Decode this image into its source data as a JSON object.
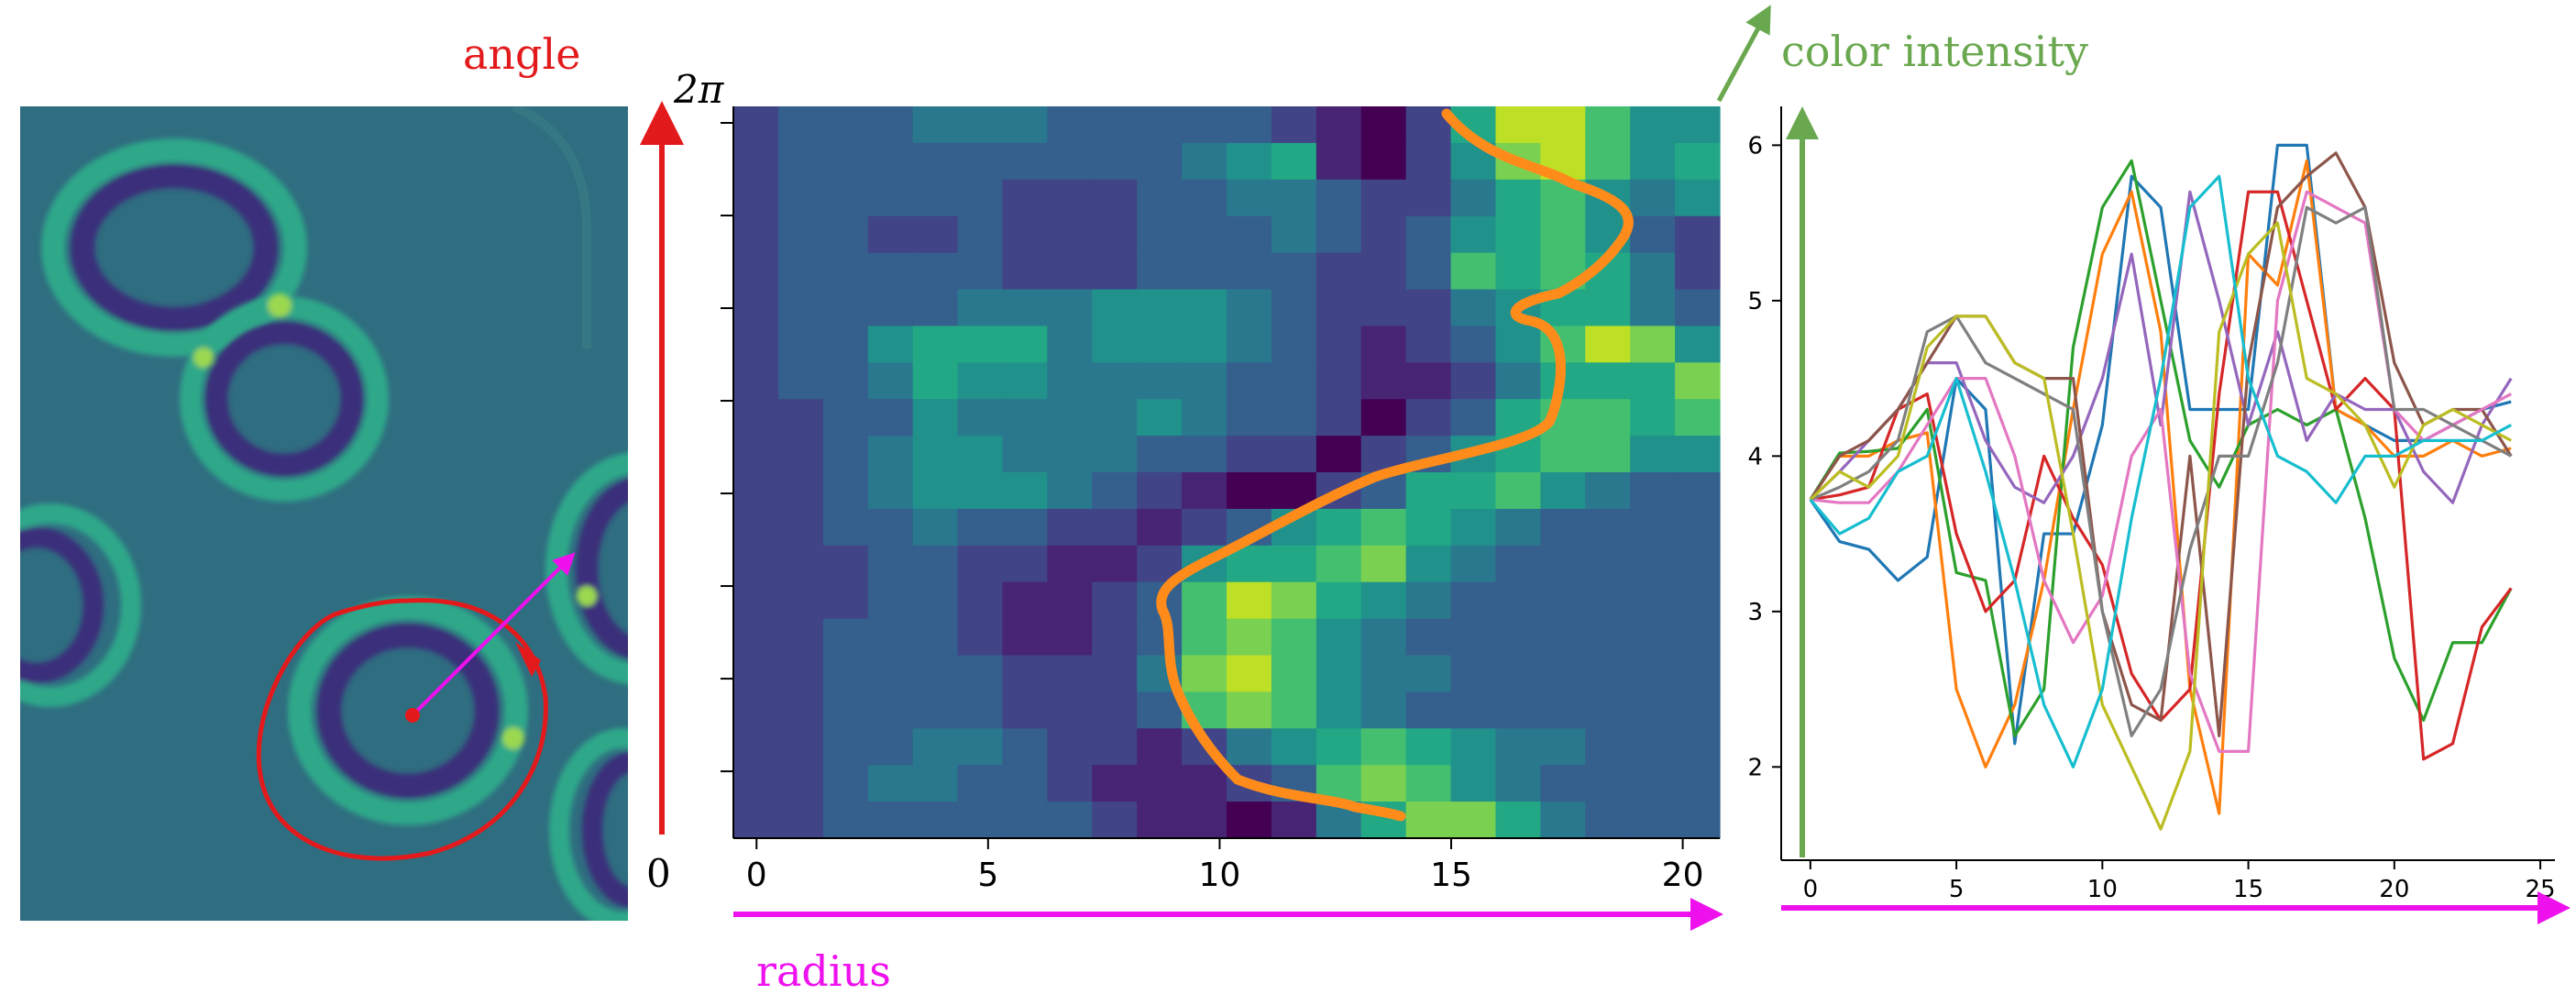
{
  "labels": {
    "angle": "angle",
    "two_pi": "2π",
    "zero": "0",
    "radius": "radius",
    "color_intensity": "color intensity"
  },
  "colors": {
    "angle_arrow": "#e31a1c",
    "radius_arrow": "#ee11ee",
    "intensity_arrow": "#6aa84f",
    "path": "#ff8c1a",
    "circle": "#e31a1c"
  },
  "heatmap": {
    "x_ticks": [
      "0",
      "5",
      "10",
      "15",
      "20"
    ],
    "x_range": [
      -0.5,
      20.8
    ],
    "grid": [
      [
        2,
        3,
        3,
        3,
        4,
        4,
        4,
        3,
        3,
        3,
        3,
        3,
        2,
        1,
        0,
        2,
        6,
        9,
        9,
        7,
        5,
        5
      ],
      [
        2,
        3,
        3,
        3,
        3,
        3,
        3,
        3,
        3,
        3,
        4,
        5,
        6,
        1,
        0,
        2,
        5,
        8,
        9,
        7,
        5,
        6
      ],
      [
        2,
        3,
        3,
        3,
        3,
        3,
        2,
        2,
        2,
        3,
        3,
        4,
        4,
        3,
        2,
        2,
        4,
        6,
        7,
        5,
        4,
        5
      ],
      [
        2,
        3,
        3,
        2,
        2,
        3,
        2,
        2,
        2,
        3,
        3,
        3,
        4,
        3,
        2,
        3,
        5,
        6,
        7,
        5,
        3,
        2
      ],
      [
        2,
        3,
        3,
        3,
        3,
        3,
        2,
        2,
        2,
        3,
        3,
        3,
        3,
        2,
        2,
        3,
        7,
        6,
        7,
        6,
        4,
        2
      ],
      [
        2,
        3,
        3,
        3,
        3,
        4,
        4,
        4,
        5,
        5,
        5,
        4,
        3,
        2,
        2,
        2,
        4,
        5,
        6,
        6,
        4,
        3
      ],
      [
        2,
        3,
        3,
        5,
        6,
        6,
        6,
        4,
        5,
        5,
        5,
        4,
        3,
        2,
        1,
        2,
        3,
        5,
        7,
        9,
        8,
        5
      ],
      [
        2,
        3,
        3,
        4,
        6,
        5,
        5,
        4,
        4,
        4,
        4,
        3,
        3,
        2,
        1,
        1,
        2,
        4,
        6,
        6,
        6,
        8
      ],
      [
        2,
        2,
        3,
        3,
        5,
        4,
        4,
        4,
        4,
        5,
        4,
        3,
        3,
        2,
        0,
        2,
        3,
        6,
        7,
        7,
        6,
        7
      ],
      [
        2,
        2,
        3,
        4,
        5,
        5,
        4,
        4,
        4,
        3,
        3,
        2,
        2,
        0,
        2,
        3,
        5,
        6,
        7,
        7,
        5,
        5
      ],
      [
        2,
        2,
        3,
        4,
        5,
        5,
        5,
        4,
        3,
        2,
        1,
        0,
        0,
        2,
        3,
        6,
        6,
        7,
        5,
        4,
        3,
        3
      ],
      [
        2,
        2,
        3,
        3,
        4,
        3,
        3,
        2,
        2,
        1,
        2,
        3,
        5,
        6,
        7,
        6,
        5,
        4,
        3,
        3,
        3,
        3
      ],
      [
        2,
        2,
        2,
        3,
        3,
        2,
        2,
        1,
        1,
        2,
        5,
        6,
        6,
        7,
        8,
        5,
        4,
        3,
        3,
        3,
        3,
        3
      ],
      [
        2,
        2,
        2,
        3,
        3,
        2,
        1,
        1,
        2,
        3,
        7,
        9,
        8,
        6,
        5,
        4,
        3,
        3,
        3,
        3,
        3,
        3
      ],
      [
        2,
        2,
        3,
        3,
        3,
        2,
        1,
        1,
        2,
        3,
        7,
        8,
        7,
        5,
        4,
        3,
        3,
        3,
        3,
        3,
        3,
        3
      ],
      [
        2,
        2,
        3,
        3,
        3,
        3,
        2,
        2,
        2,
        4,
        8,
        9,
        7,
        5,
        4,
        4,
        3,
        3,
        3,
        3,
        3,
        3
      ],
      [
        2,
        2,
        3,
        3,
        3,
        3,
        2,
        2,
        2,
        3,
        7,
        8,
        7,
        5,
        4,
        3,
        3,
        3,
        3,
        3,
        3,
        3
      ],
      [
        2,
        2,
        3,
        3,
        4,
        4,
        3,
        2,
        2,
        1,
        2,
        4,
        5,
        6,
        7,
        6,
        5,
        4,
        4,
        3,
        3,
        3
      ],
      [
        2,
        2,
        3,
        4,
        4,
        3,
        3,
        2,
        1,
        1,
        1,
        2,
        3,
        7,
        8,
        7,
        5,
        4,
        3,
        3,
        3,
        3
      ],
      [
        2,
        2,
        3,
        3,
        3,
        3,
        3,
        3,
        2,
        1,
        1,
        0,
        1,
        4,
        6,
        8,
        8,
        6,
        4,
        3,
        3,
        3
      ]
    ]
  },
  "chart_data": {
    "type": "line",
    "title": "",
    "xlabel": "",
    "ylabel": "",
    "xlim": [
      -1,
      25.5
    ],
    "ylim": [
      1.4,
      6.25
    ],
    "x_ticks": [
      "0",
      "5",
      "10",
      "15",
      "20",
      "25"
    ],
    "y_ticks": [
      "2",
      "3",
      "4",
      "5",
      "6"
    ],
    "x": [
      0,
      1,
      2,
      3,
      4,
      5,
      6,
      7,
      8,
      9,
      10,
      11,
      12,
      13,
      14,
      15,
      16,
      17,
      18,
      19,
      20,
      21,
      22,
      23,
      24
    ],
    "series": [
      {
        "color": "#1f77b4",
        "values": [
          3.72,
          3.45,
          3.4,
          3.2,
          3.35,
          4.5,
          4.3,
          2.15,
          3.5,
          3.5,
          4.2,
          5.8,
          5.6,
          4.3,
          4.3,
          4.3,
          6.0,
          6.0,
          4.3,
          4.2,
          4.1,
          4.1,
          4.2,
          4.3,
          4.35
        ]
      },
      {
        "color": "#ff7f0e",
        "values": [
          3.72,
          4.0,
          4.0,
          4.1,
          4.15,
          2.5,
          2.0,
          2.4,
          3.2,
          4.3,
          5.3,
          5.7,
          4.8,
          2.5,
          1.7,
          5.3,
          5.1,
          5.9,
          4.3,
          4.2,
          4.0,
          4.0,
          4.1,
          4.0,
          4.05
        ]
      },
      {
        "color": "#2ca02c",
        "values": [
          3.72,
          4.02,
          4.03,
          4.05,
          4.3,
          3.25,
          3.2,
          2.2,
          2.5,
          4.7,
          5.6,
          5.9,
          5.0,
          4.1,
          3.8,
          4.2,
          4.3,
          4.2,
          4.3,
          3.6,
          2.7,
          2.3,
          2.8,
          2.8,
          3.15
        ]
      },
      {
        "color": "#d62728",
        "values": [
          3.72,
          3.75,
          3.8,
          4.3,
          4.4,
          3.5,
          3.0,
          3.2,
          4.0,
          3.6,
          3.3,
          2.6,
          2.3,
          2.5,
          4.4,
          5.7,
          5.7,
          5.0,
          4.3,
          4.5,
          4.3,
          2.05,
          2.15,
          2.9,
          3.15
        ]
      },
      {
        "color": "#9467bd",
        "values": [
          3.72,
          3.9,
          4.1,
          4.3,
          4.6,
          4.6,
          4.1,
          3.8,
          3.7,
          4.0,
          4.5,
          5.3,
          4.2,
          5.7,
          5.0,
          4.2,
          4.8,
          4.1,
          4.4,
          4.3,
          4.3,
          3.9,
          3.7,
          4.2,
          4.5
        ]
      },
      {
        "color": "#8c564b",
        "values": [
          3.72,
          4.0,
          4.1,
          4.3,
          4.6,
          4.9,
          4.9,
          4.6,
          4.5,
          4.5,
          3.0,
          2.4,
          2.3,
          4.0,
          2.2,
          4.6,
          5.6,
          5.8,
          5.95,
          5.6,
          4.6,
          4.2,
          4.3,
          4.3,
          4.0
        ]
      },
      {
        "color": "#e377c2",
        "values": [
          3.72,
          3.7,
          3.7,
          3.9,
          4.2,
          4.5,
          4.5,
          4.0,
          3.2,
          2.8,
          3.1,
          4.0,
          4.3,
          2.6,
          2.1,
          2.1,
          5.0,
          5.7,
          5.6,
          5.5,
          4.3,
          4.1,
          4.2,
          4.3,
          4.4
        ]
      },
      {
        "color": "#7f7f7f",
        "values": [
          3.72,
          3.8,
          3.9,
          4.1,
          4.8,
          4.9,
          4.6,
          4.5,
          4.4,
          4.3,
          3.0,
          2.2,
          2.5,
          3.4,
          4.0,
          4.0,
          4.6,
          5.6,
          5.5,
          5.6,
          4.3,
          4.3,
          4.2,
          4.1,
          4.0
        ]
      },
      {
        "color": "#bcbd22",
        "values": [
          3.72,
          3.9,
          3.8,
          4.0,
          4.7,
          4.9,
          4.9,
          4.6,
          4.5,
          3.5,
          2.4,
          2.0,
          1.6,
          2.1,
          4.8,
          5.3,
          5.5,
          4.5,
          4.4,
          4.2,
          3.8,
          4.2,
          4.3,
          4.2,
          4.1
        ]
      },
      {
        "color": "#17becf",
        "values": [
          3.72,
          3.5,
          3.6,
          3.9,
          4.0,
          4.5,
          3.9,
          3.2,
          2.4,
          2.0,
          2.5,
          3.6,
          4.5,
          5.6,
          5.8,
          4.5,
          4.0,
          3.9,
          3.7,
          4.0,
          4.0,
          4.1,
          4.1,
          4.1,
          4.2
        ]
      }
    ]
  }
}
